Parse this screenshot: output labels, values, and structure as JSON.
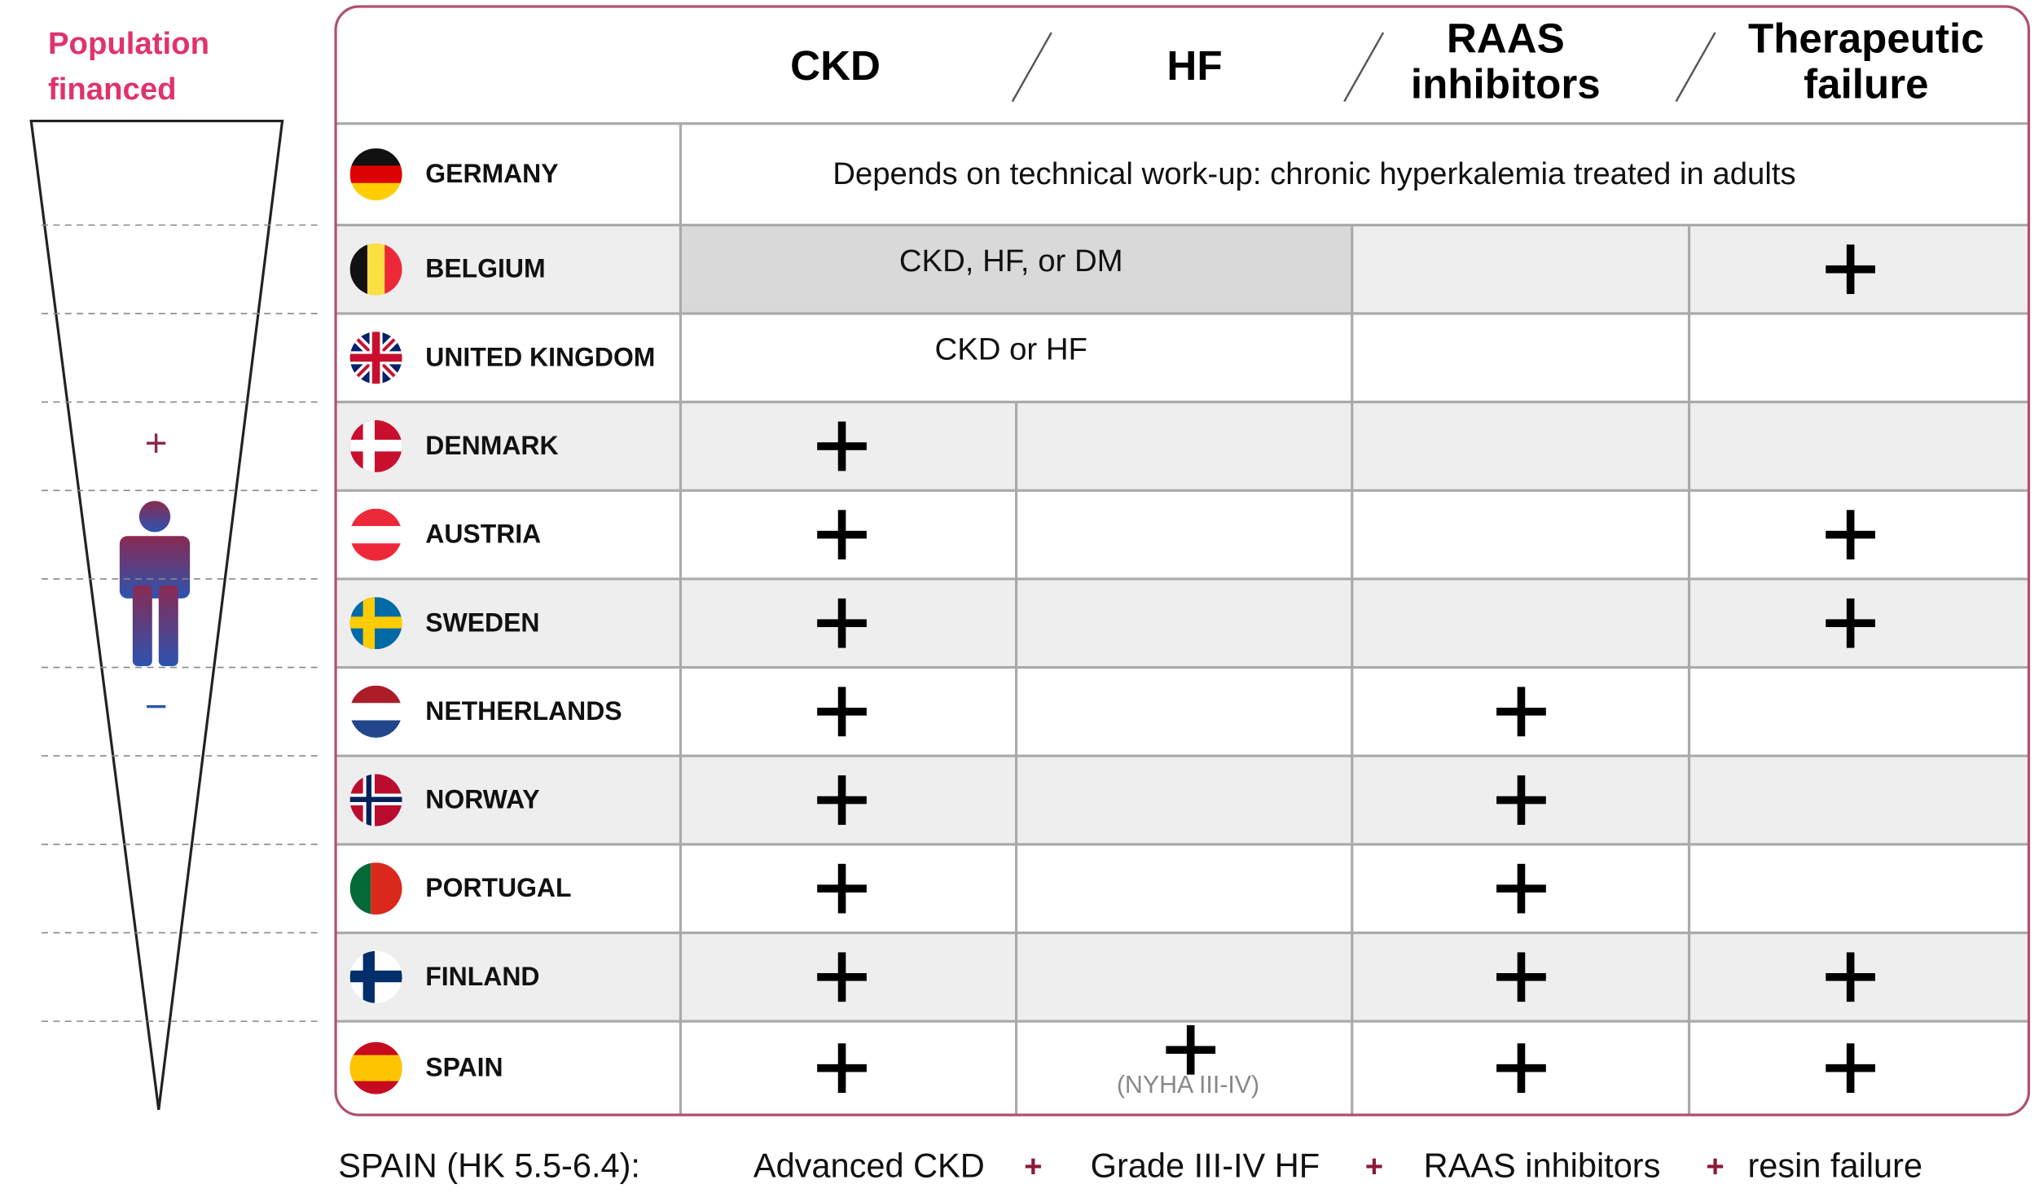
{
  "side": {
    "title": [
      "Population",
      "financed"
    ],
    "more": "+",
    "less": "−"
  },
  "table": {
    "columns": [
      [
        "CKD"
      ],
      [
        "HF"
      ],
      [
        "RAAS",
        "inhibitors"
      ],
      [
        "Therapeutic",
        "failure"
      ]
    ],
    "rows": [
      {
        "country": "GERMANY",
        "note": "Depends on technical work-up: chronic hyperkalemia treated in adults",
        "covers": 4,
        "criteria": [
          false,
          false,
          false,
          false
        ]
      },
      {
        "country": "BELGIUM",
        "note": "CKD, HF, or DM",
        "covers": 2,
        "criteria": [
          false,
          false,
          false,
          true
        ]
      },
      {
        "country": "UNITED KINGDOM",
        "note": "CKD or HF",
        "covers": 2,
        "criteria": [
          false,
          false,
          false,
          false
        ]
      },
      {
        "country": "DENMARK",
        "criteria": [
          true,
          false,
          false,
          false
        ]
      },
      {
        "country": "AUSTRIA",
        "criteria": [
          true,
          false,
          false,
          true
        ]
      },
      {
        "country": "SWEDEN",
        "criteria": [
          true,
          false,
          false,
          true
        ]
      },
      {
        "country": "NETHERLANDS",
        "criteria": [
          true,
          false,
          true,
          false
        ]
      },
      {
        "country": "NORWAY",
        "criteria": [
          true,
          false,
          true,
          false
        ]
      },
      {
        "country": "PORTUGAL",
        "criteria": [
          true,
          false,
          true,
          false
        ]
      },
      {
        "country": "FINLAND",
        "criteria": [
          true,
          false,
          true,
          true
        ]
      },
      {
        "country": "SPAIN",
        "criteria": [
          true,
          true,
          true,
          true
        ],
        "hf_note": "(NYHA III-IV)"
      }
    ]
  },
  "footer": {
    "label": "SPAIN (HK 5.5-6.4):",
    "items": [
      "Advanced CKD",
      "Grade III-IV HF",
      "RAAS inhibitors",
      "resin failure"
    ],
    "separator": "+"
  }
}
